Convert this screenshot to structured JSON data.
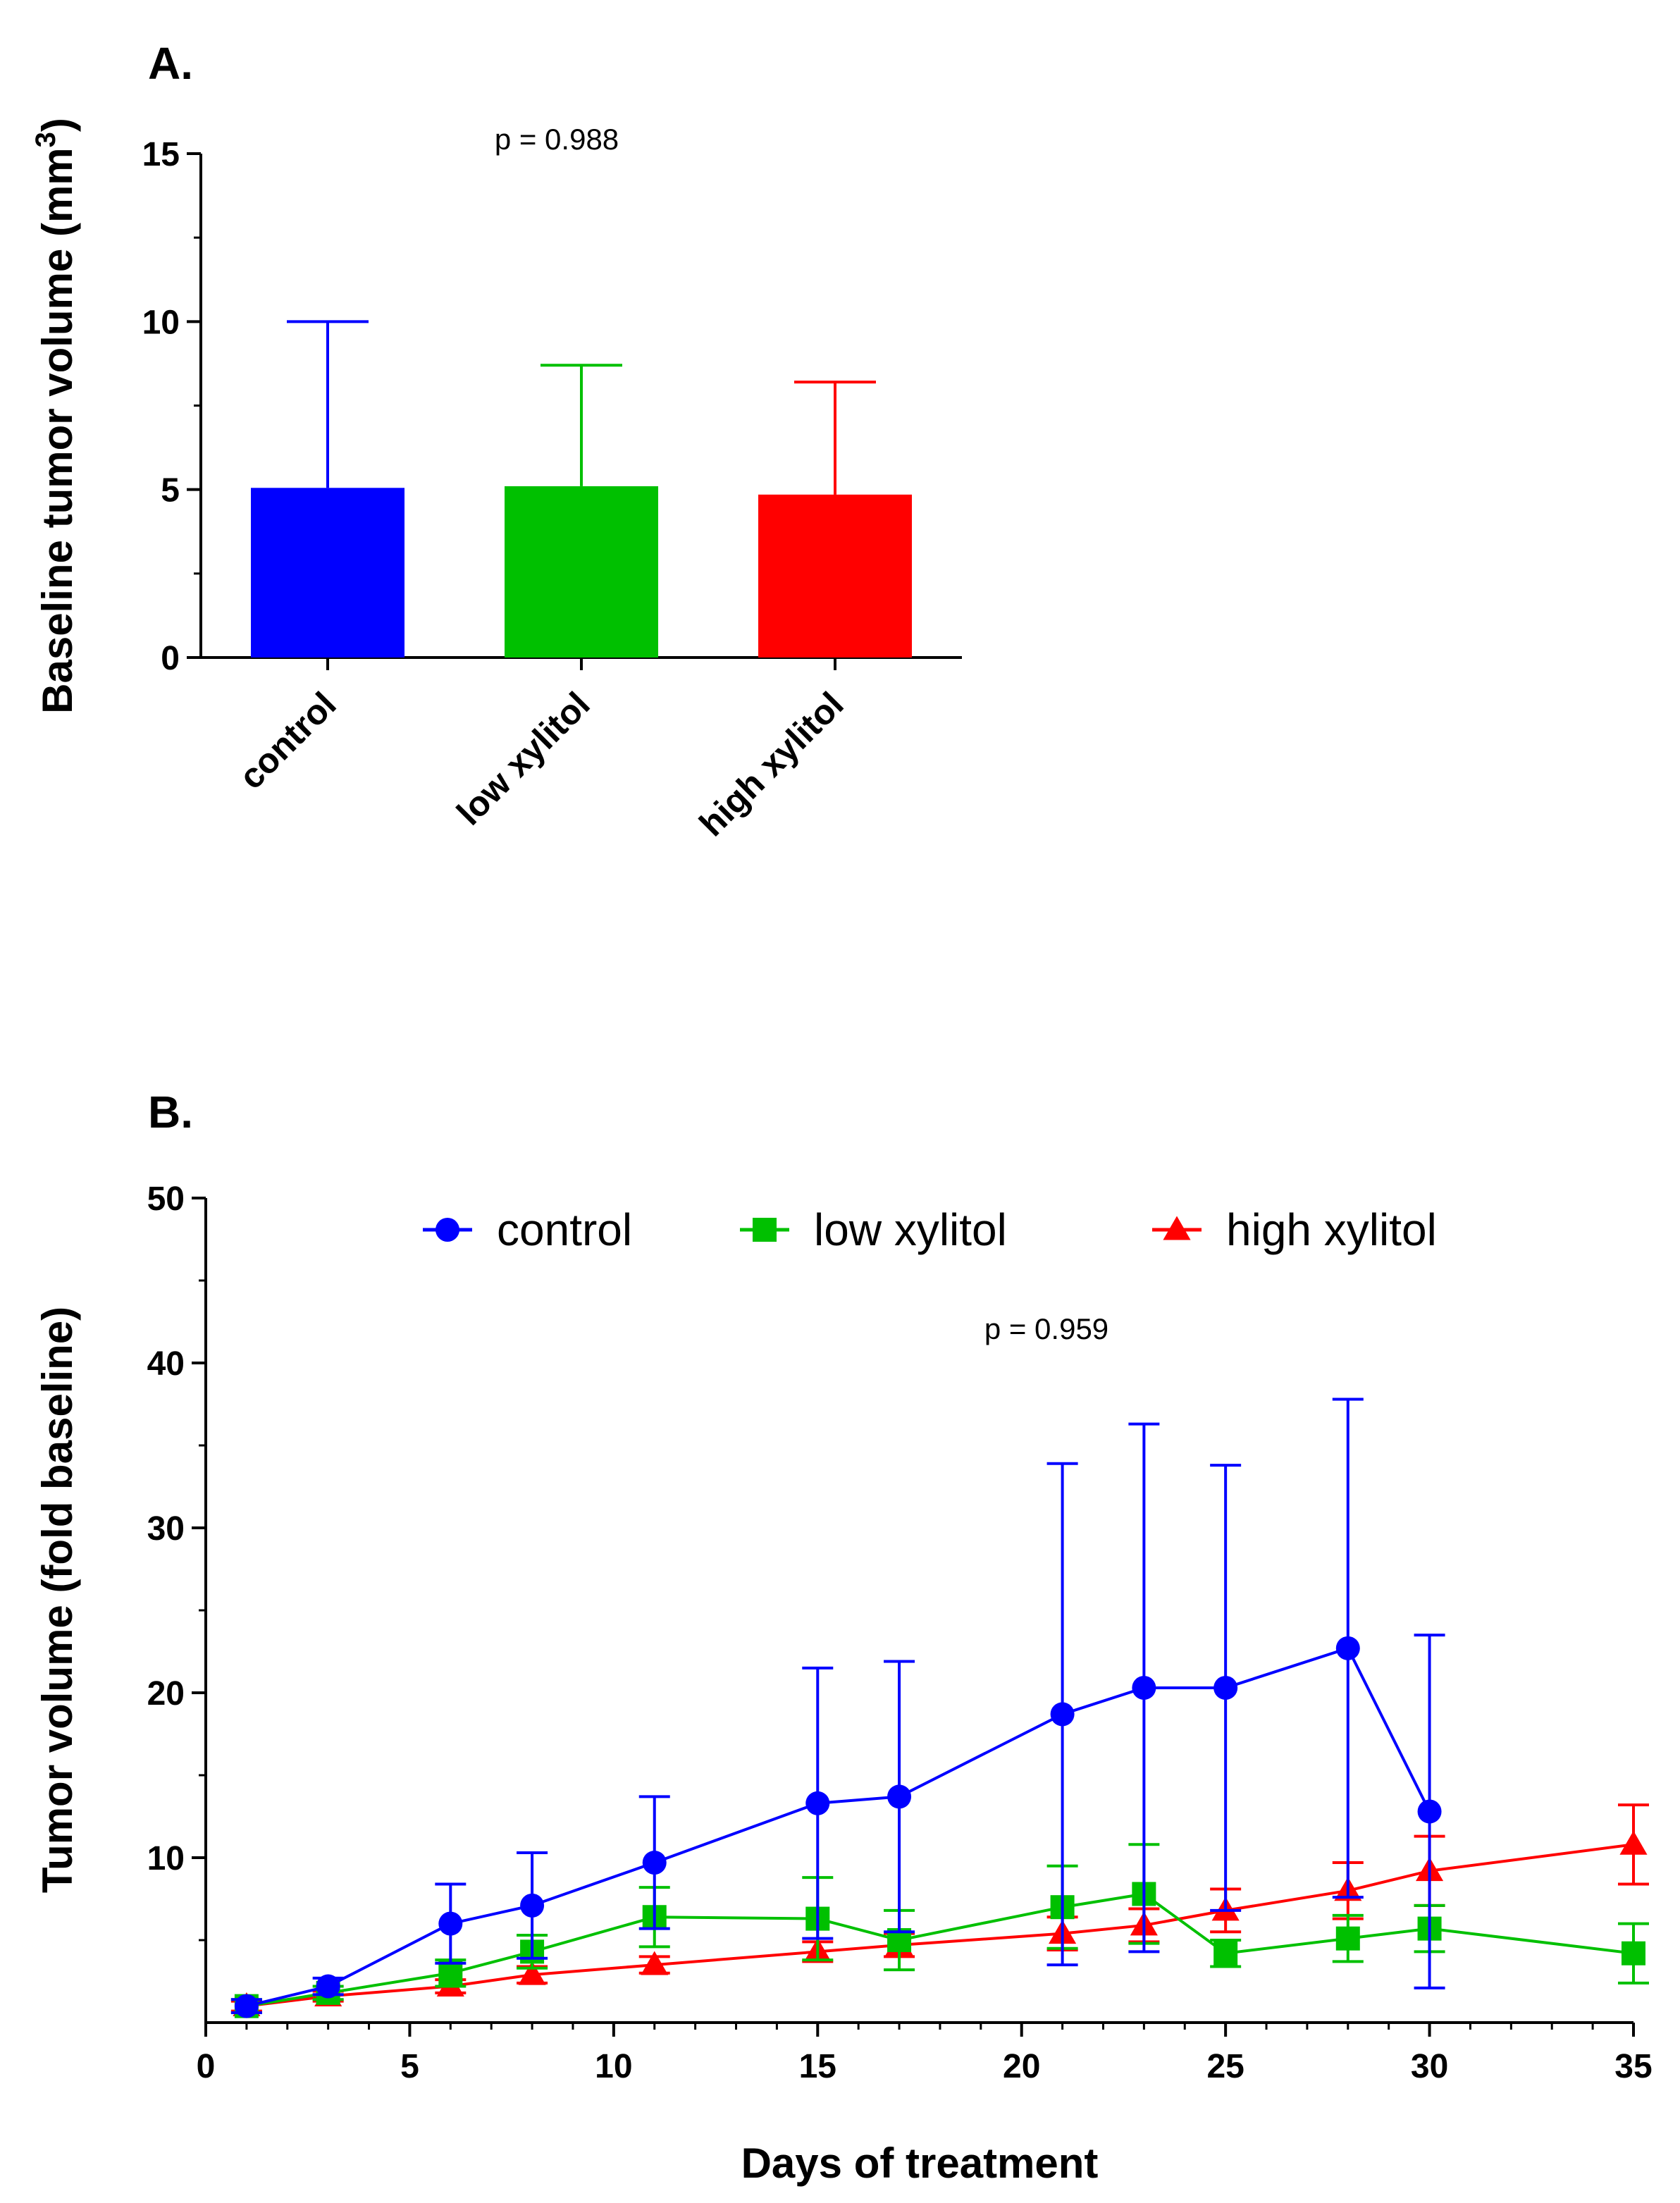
{
  "panel_a_label": "A.",
  "panel_b_label": "B.",
  "chart_data": [
    {
      "type": "bar",
      "title": "",
      "xlabel": "",
      "ylabel": "Baseline tumor volume (mm",
      "ylabel_sup": "3",
      "ylabel_close": ")",
      "ylim": [
        0,
        15
      ],
      "yticks": [
        0,
        5,
        10,
        15
      ],
      "categories": [
        "control",
        "low xylitol",
        "high xylitol"
      ],
      "values": [
        5.05,
        5.1,
        4.85
      ],
      "errors": [
        4.95,
        3.6,
        3.35
      ],
      "colors": [
        "#0000FF",
        "#00C000",
        "#FF0000"
      ],
      "annotation": "p = 0.988",
      "grid": false
    },
    {
      "type": "line",
      "title": "",
      "xlabel": "Days of treatment",
      "ylabel": "Tumor volume (fold baseline)",
      "xlim": [
        0,
        35
      ],
      "ylim": [
        0,
        50
      ],
      "xticks": [
        0,
        5,
        10,
        15,
        20,
        25,
        30,
        35
      ],
      "yticks": [
        10,
        20,
        30,
        40,
        50
      ],
      "annotation": "p = 0.959",
      "legend": "top",
      "grid": false,
      "series": [
        {
          "name": "control",
          "color": "#0000FF",
          "marker": "circle",
          "x": [
            1,
            3,
            6,
            8,
            11,
            15,
            17,
            21,
            23,
            25,
            28,
            30
          ],
          "y": [
            1.0,
            2.2,
            6.0,
            7.1,
            9.7,
            13.3,
            13.7,
            18.7,
            20.3,
            20.3,
            22.7,
            12.8
          ],
          "err": [
            0.4,
            0.5,
            2.4,
            3.2,
            4.0,
            8.2,
            8.2,
            15.2,
            16.0,
            13.5,
            15.1,
            10.7
          ]
        },
        {
          "name": "low xylitol",
          "color": "#00C000",
          "marker": "square",
          "x": [
            1,
            3,
            6,
            8,
            11,
            15,
            17,
            21,
            23,
            25,
            28,
            30,
            35
          ],
          "y": [
            1.0,
            1.8,
            3.0,
            4.3,
            6.4,
            6.3,
            5.0,
            7.0,
            7.8,
            4.2,
            5.1,
            5.7,
            4.2
          ],
          "err": [
            0.4,
            0.4,
            0.8,
            1.0,
            1.8,
            2.5,
            1.8,
            2.5,
            3.0,
            0.8,
            1.4,
            1.4,
            1.8
          ]
        },
        {
          "name": "high xylitol",
          "color": "#FF0000",
          "marker": "triangle",
          "x": [
            1,
            3,
            6,
            8,
            11,
            15,
            17,
            21,
            23,
            25,
            28,
            30,
            35
          ],
          "y": [
            1.0,
            1.6,
            2.2,
            2.9,
            3.5,
            4.3,
            4.7,
            5.4,
            5.9,
            6.8,
            8.0,
            9.2,
            10.8
          ],
          "err": [
            0.3,
            0.3,
            0.4,
            0.5,
            0.5,
            0.6,
            0.7,
            1.0,
            1.0,
            1.3,
            1.7,
            2.1,
            2.4
          ]
        }
      ]
    }
  ]
}
